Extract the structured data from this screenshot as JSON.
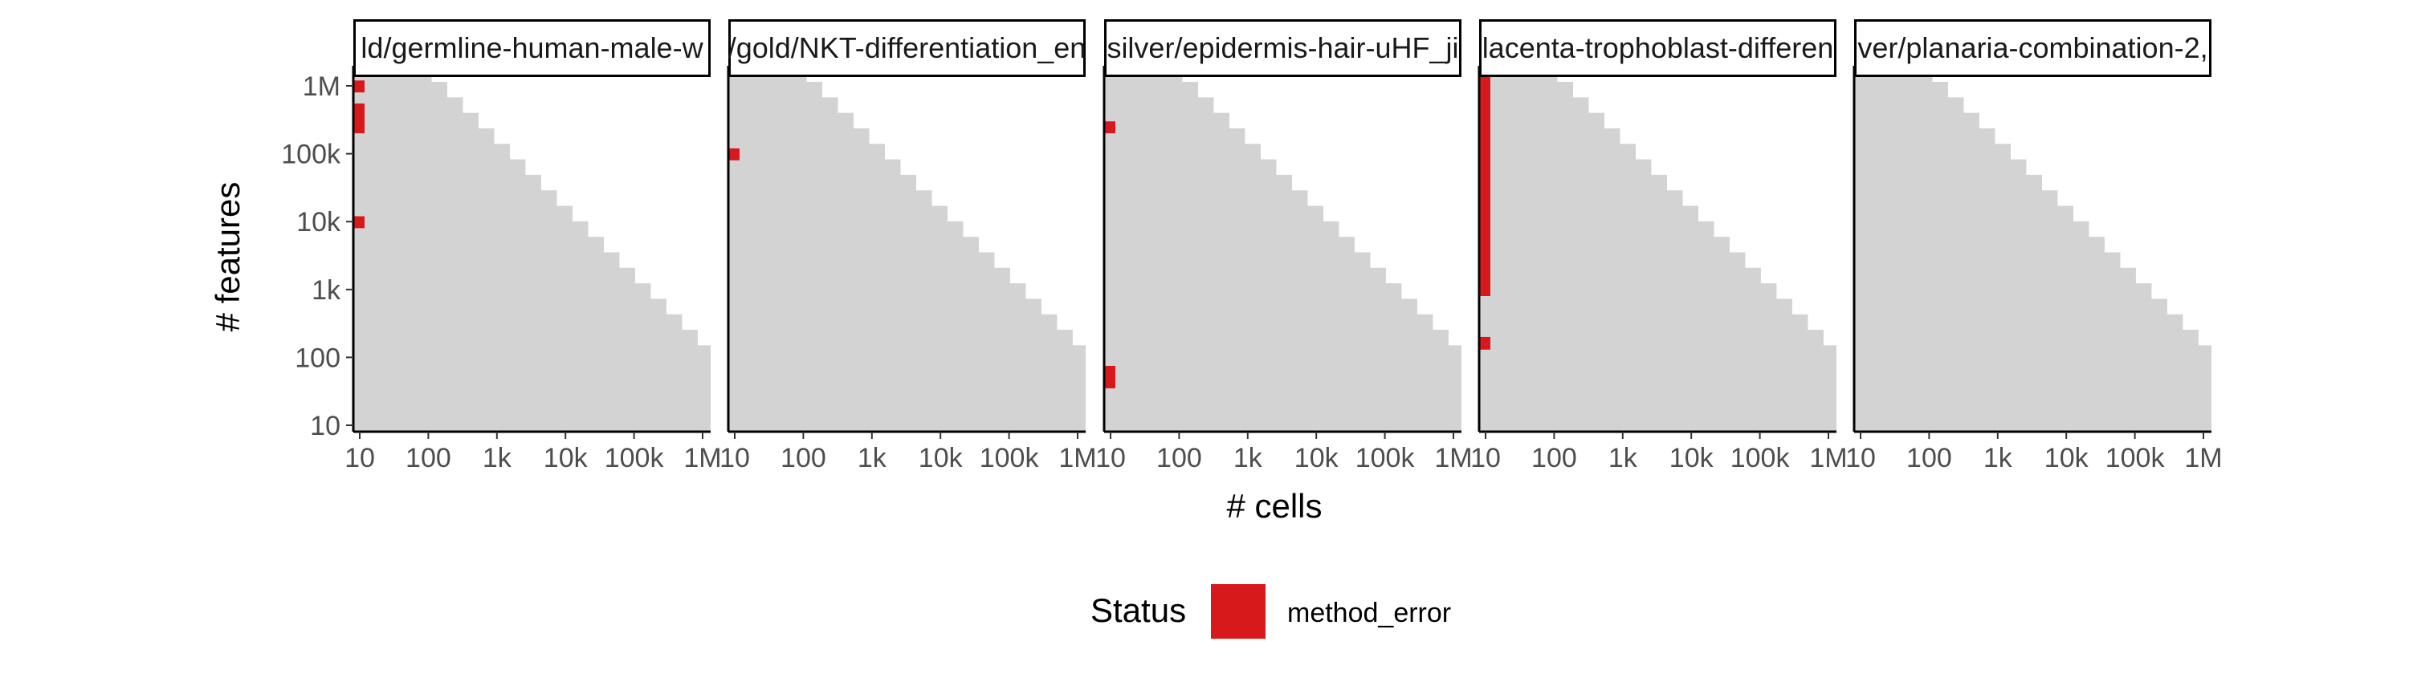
{
  "chart_data": {
    "type": "heatmap",
    "xlabel": "# cells",
    "ylabel": "# features",
    "x_scale": "log10",
    "y_scale": "log10",
    "xlim": [
      10,
      1000000
    ],
    "ylim": [
      10,
      1000000
    ],
    "x_tick_values": [
      10,
      100,
      1000,
      10000,
      100000,
      1000000
    ],
    "x_tick_labels": [
      "10",
      "100",
      "1k",
      "10k",
      "100k",
      "1M"
    ],
    "y_tick_values": [
      10,
      100,
      1000,
      10000,
      100000,
      1000000
    ],
    "y_tick_labels": [
      "10",
      "100",
      "1k",
      "10k",
      "100k",
      "1M"
    ],
    "grid": false,
    "legend": {
      "title": "Status",
      "position": "bottom",
      "entries": [
        {
          "label": "method_error",
          "color": "#d7191c"
        }
      ]
    },
    "colors": {
      "background_cells": "#d3d3d3",
      "method_error": "#d7191c"
    },
    "background_region": "cells where log10(# cells) + log10(# features) <= ~8.1 shaded grey (staircase)",
    "panels": [
      {
        "title": "ld/germline-human-male-w",
        "method_error_cells": [
          {
            "x": 10,
            "y_from": 800000,
            "y_to": 1200000
          },
          {
            "x": 10,
            "y_from": 200000,
            "y_to": 550000
          },
          {
            "x": 10,
            "y_from": 8000,
            "y_to": 12000
          }
        ]
      },
      {
        "title": "/gold/NKT-differentiation_en",
        "method_error_cells": [
          {
            "x": 10,
            "y_from": 80000,
            "y_to": 120000
          }
        ]
      },
      {
        "title": "silver/epidermis-hair-uHF_ji",
        "method_error_cells": [
          {
            "x": 10,
            "y_from": 200000,
            "y_to": 300000
          },
          {
            "x": 10,
            "y_from": 35,
            "y_to": 75
          }
        ]
      },
      {
        "title": "lacenta-trophoblast-differen",
        "method_error_cells": [
          {
            "x": 10,
            "y_from": 800,
            "y_to": 1500000
          },
          {
            "x": 10,
            "y_from": 130,
            "y_to": 200
          }
        ]
      },
      {
        "title": "ver/planaria-combination-2,",
        "method_error_cells": []
      }
    ]
  }
}
